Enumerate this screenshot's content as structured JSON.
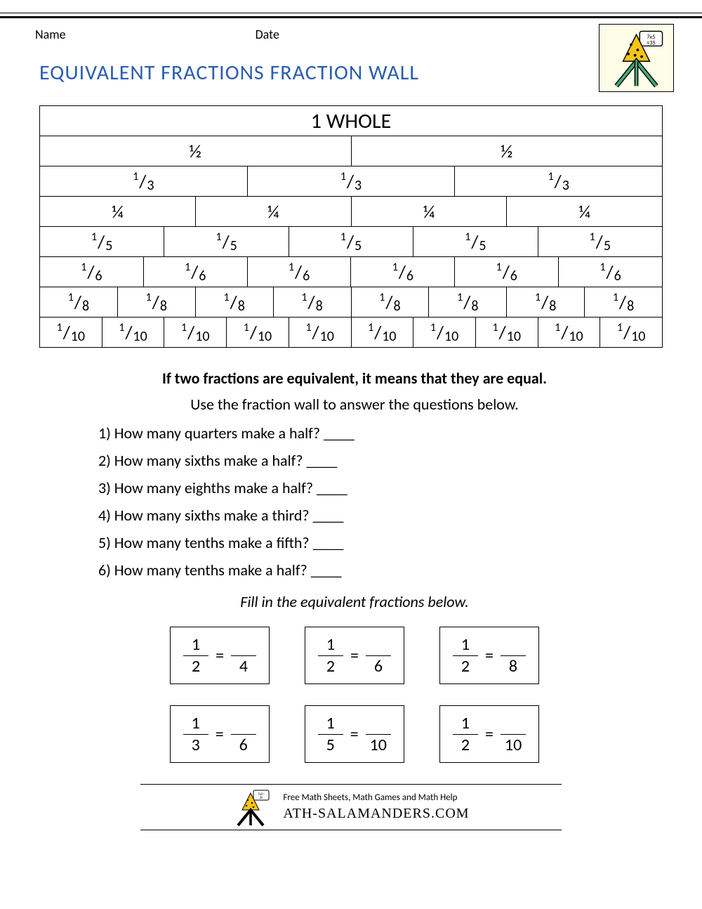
{
  "header": {
    "name_label": "Name",
    "date_label": "Date",
    "title": "EQUIVALENT FRACTIONS FRACTION WALL"
  },
  "wall": {
    "whole_label": "1 WHOLE",
    "rows": [
      {
        "label": "½",
        "count": 2
      },
      {
        "label": "1/3",
        "count": 3,
        "diag": true,
        "n": "1",
        "d": "3"
      },
      {
        "label": "¼",
        "count": 4
      },
      {
        "label": "1/5",
        "count": 5,
        "diag": true,
        "n": "1",
        "d": "5"
      },
      {
        "label": "1/6",
        "count": 6,
        "diag": true,
        "n": "1",
        "d": "6"
      },
      {
        "label": "1/8",
        "count": 8,
        "diag": true,
        "n": "1",
        "d": "8"
      },
      {
        "label": "1/10",
        "count": 10,
        "diag": true,
        "n": "1",
        "d": "10"
      }
    ]
  },
  "text": {
    "bold": "If two fractions are equivalent, it means that they are equal.",
    "use": "Use the fraction wall to answer the questions below.",
    "fill": "Fill in the equivalent fractions below."
  },
  "questions": [
    "1) How many quarters make a half? ____",
    "2) How many sixths make a half? ____",
    "3) How many eighths make a half? ____",
    "4) How many sixths make a third? ____",
    "5) How many tenths make a fifth? ____",
    "6) How many tenths make a half? ____"
  ],
  "equivalences": [
    [
      {
        "ln": "1",
        "ld": "2",
        "rd": "4"
      },
      {
        "ln": "1",
        "ld": "2",
        "rd": "6"
      },
      {
        "ln": "1",
        "ld": "2",
        "rd": "8"
      }
    ],
    [
      {
        "ln": "1",
        "ld": "3",
        "rd": "6"
      },
      {
        "ln": "1",
        "ld": "5",
        "rd": "10"
      },
      {
        "ln": "1",
        "ld": "2",
        "rd": "10"
      }
    ]
  ],
  "footer": {
    "tagline": "Free Math Sheets, Math Games and Math Help",
    "site": "ATH-SALAMANDERS.COM"
  },
  "colors": {
    "title": "#2a5db0",
    "border": "#000000",
    "page_bg": "#ffffff",
    "logo_bg": "#fdfde8"
  }
}
